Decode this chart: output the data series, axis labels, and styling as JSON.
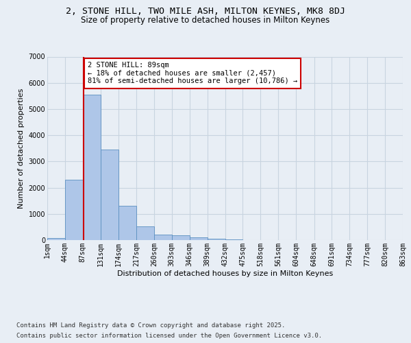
{
  "title_line1": "2, STONE HILL, TWO MILE ASH, MILTON KEYNES, MK8 8DJ",
  "title_line2": "Size of property relative to detached houses in Milton Keynes",
  "xlabel": "Distribution of detached houses by size in Milton Keynes",
  "ylabel": "Number of detached properties",
  "footer_line1": "Contains HM Land Registry data © Crown copyright and database right 2025.",
  "footer_line2": "Contains public sector information licensed under the Open Government Licence v3.0.",
  "bar_color": "#aec6e8",
  "bar_edge_color": "#5a8fc0",
  "background_color": "#e8eef5",
  "bin_edges": [
    1,
    44,
    87,
    131,
    174,
    217,
    260,
    303,
    346,
    389,
    432,
    475,
    518,
    561,
    604,
    648,
    691,
    734,
    777,
    820,
    863
  ],
  "bar_heights": [
    75,
    2300,
    5550,
    3450,
    1320,
    520,
    215,
    195,
    110,
    65,
    35,
    0,
    0,
    0,
    0,
    0,
    0,
    0,
    0,
    0
  ],
  "property_size": 89,
  "vline_color": "#cc0000",
  "annotation_line1": "2 STONE HILL: 89sqm",
  "annotation_line2": "← 18% of detached houses are smaller (2,457)",
  "annotation_line3": "81% of semi-detached houses are larger (10,786) →",
  "annotation_box_color": "#ffffff",
  "annotation_box_edge_color": "#cc0000",
  "ylim": [
    0,
    7000
  ],
  "yticks": [
    0,
    1000,
    2000,
    3000,
    4000,
    5000,
    6000,
    7000
  ],
  "grid_color": "#c8d4e0",
  "title_fontsize": 9.5,
  "subtitle_fontsize": 8.5,
  "axis_label_fontsize": 8,
  "tick_fontsize": 7,
  "annotation_fontsize": 7.5,
  "footer_fontsize": 6.5
}
